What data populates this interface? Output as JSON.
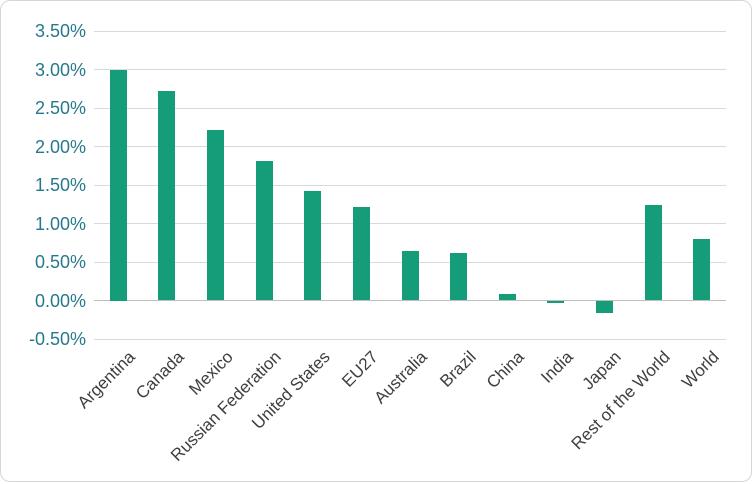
{
  "chart_data": {
    "type": "bar",
    "categories": [
      "Argentina",
      "Canada",
      "Mexico",
      "Russian Federation",
      "United States",
      "EU27",
      "Australia",
      "Brazil",
      "China",
      "India",
      "Japan",
      "Rest of the World",
      "World"
    ],
    "values": [
      3.0,
      2.72,
      2.21,
      1.81,
      1.42,
      1.21,
      0.64,
      0.62,
      0.08,
      -0.03,
      -0.16,
      1.24,
      0.8
    ],
    "values_unit": "percent",
    "ylim": [
      -0.5,
      3.5
    ],
    "ytick_step": 0.5,
    "ytick_labels": [
      "3.50%",
      "3.00%",
      "2.50%",
      "2.00%",
      "1.50%",
      "1.00%",
      "0.50%",
      "0.00%",
      "-0.50%"
    ],
    "grid": true,
    "legend": "none",
    "xlabel": "",
    "ylabel": "",
    "bar_color": "#159c78",
    "tick_label_color": "#26798c",
    "category_label_color": "#3f3f3f",
    "gridline_color": "#d9d9d9",
    "axis_line_color": "#bdbdbd"
  }
}
